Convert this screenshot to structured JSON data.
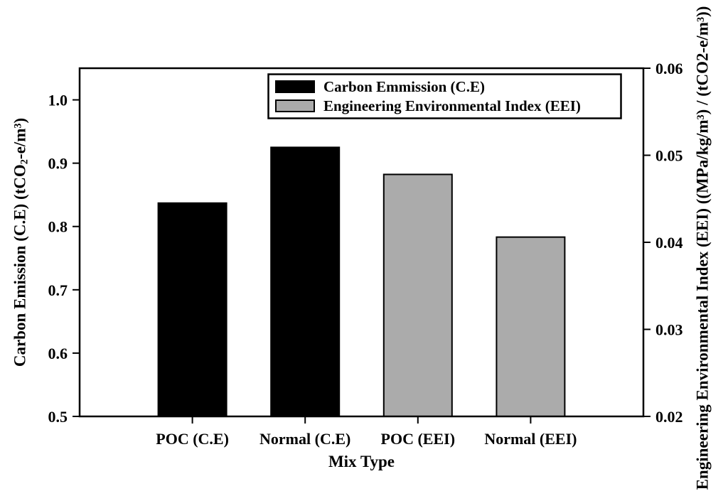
{
  "chart_data": {
    "type": "bar",
    "title": "",
    "xlabel": "Mix Type",
    "categories": [
      "POC (C.E)",
      "Normal (C.E)",
      "POC (EEI)",
      "Normal (EEI)"
    ],
    "bars": [
      {
        "category": "POC (C.E)",
        "series": "Carbon Emmission (C.E)",
        "axis": "left",
        "value": 0.837,
        "color": "#000000"
      },
      {
        "category": "Normal (C.E)",
        "series": "Carbon Emmission (C.E)",
        "axis": "left",
        "value": 0.925,
        "color": "#000000"
      },
      {
        "category": "POC (EEI)",
        "series": "Engineering Environmental Index (EEI)",
        "axis": "right",
        "value": 0.0478,
        "color": "#ababab"
      },
      {
        "category": "Normal (EEI)",
        "series": "Engineering Environmental Index (EEI)",
        "axis": "right",
        "value": 0.0406,
        "color": "#ababab"
      }
    ],
    "left_axis": {
      "range": [
        0.5,
        1.05
      ],
      "ticks": [
        {
          "value": 0.5,
          "label": "0.5"
        },
        {
          "value": 0.6,
          "label": "0.6"
        },
        {
          "value": 0.7,
          "label": "0.7"
        },
        {
          "value": 0.8,
          "label": "0.8"
        },
        {
          "value": 0.9,
          "label": "0.9"
        },
        {
          "value": 1.0,
          "label": "1.0"
        }
      ],
      "label_parts": [
        {
          "text": "Carbon Emission (C.E) (tCO"
        },
        {
          "text": "2",
          "style": "sub"
        },
        {
          "text": "-e/m"
        },
        {
          "text": "3",
          "style": "sup"
        },
        {
          "text": ")"
        }
      ]
    },
    "right_axis": {
      "range": [
        0.02,
        0.06
      ],
      "ticks": [
        {
          "value": 0.02,
          "label": "0.02"
        },
        {
          "value": 0.03,
          "label": "0.03"
        },
        {
          "value": 0.04,
          "label": "0.04"
        },
        {
          "value": 0.05,
          "label": "0.05"
        },
        {
          "value": 0.06,
          "label": "0.06"
        }
      ],
      "label_parts": [
        {
          "text": "Engineering Environmental Index (EEI) ((MPa/kg/m"
        },
        {
          "text": "3",
          "style": "sup"
        },
        {
          "text": ") / (tCO2-e/m"
        },
        {
          "text": "3",
          "style": "sup"
        },
        {
          "text": "))"
        }
      ]
    },
    "legend": {
      "position": "top-right-inside",
      "entries": [
        {
          "label": "Carbon Emmission (C.E)",
          "color": "#000000"
        },
        {
          "label": "Engineering Environmental Index (EEI)",
          "color": "#ababab"
        }
      ]
    },
    "colors": {
      "frame": "#000000",
      "background": "#ffffff"
    },
    "layout_hints": {
      "grid": false,
      "bars_outlined": true
    }
  }
}
